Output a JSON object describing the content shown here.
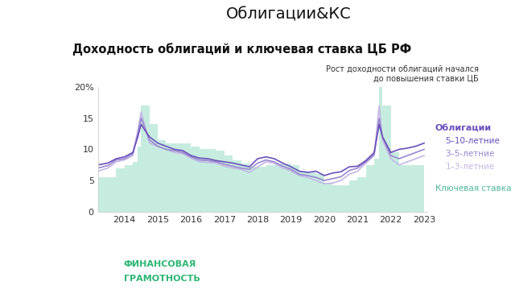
{
  "slide_title": "Облигации&КС",
  "logo": [
    "ФИНАНСОВАЯ",
    "ГРАМОТНОСТЬ"
  ],
  "chart_data": {
    "type": "line",
    "title": "Доходность облигаций и ключевая ставка ЦБ РФ",
    "annotation": "Рост доходности облигаций начался\nдо повышения ставки ЦБ",
    "legend_title": "Облигации",
    "x": [
      2013.7,
      2014.0,
      2014.25,
      2014.5,
      2014.75,
      2014.9,
      2015.0,
      2015.25,
      2015.5,
      2015.75,
      2016.0,
      2016.25,
      2016.5,
      2016.75,
      2017.0,
      2017.25,
      2017.5,
      2017.75,
      2018.0,
      2018.25,
      2018.5,
      2018.75,
      2019.0,
      2019.25,
      2019.5,
      2019.75,
      2020.0,
      2020.25,
      2020.5,
      2020.75,
      2021.0,
      2021.25,
      2021.5,
      2021.75,
      2022.0,
      2022.15,
      2022.25,
      2022.5,
      2022.75,
      2023.0,
      2023.25,
      2023.5
    ],
    "series": [
      {
        "name": "Ключевая ставка",
        "type": "area",
        "color": "#c6ecdf",
        "values": [
          5.5,
          5.5,
          7,
          7.5,
          8,
          10.5,
          17,
          14,
          11.5,
          11,
          11,
          11,
          10.5,
          10,
          10,
          9.75,
          9,
          8.25,
          7.75,
          7.25,
          7.25,
          7.5,
          7.75,
          7.75,
          7.5,
          6.5,
          6.25,
          6,
          4.5,
          4.25,
          4.25,
          5,
          5.5,
          7.5,
          8.5,
          20,
          17,
          9.5,
          7.5,
          7.5,
          7.5,
          7.5
        ]
      },
      {
        "name": "1–3-летние",
        "type": "line",
        "color": "#c3b6e6",
        "values": [
          6.5,
          7,
          8,
          8.3,
          9,
          13,
          16,
          11,
          10.5,
          10,
          9.5,
          9.3,
          8.6,
          8,
          7.9,
          7.8,
          7.3,
          7,
          6.8,
          6.3,
          7.2,
          8,
          7.8,
          7,
          6.5,
          5.8,
          5.5,
          5,
          4.5,
          4.6,
          5,
          6,
          6.5,
          7.8,
          9,
          17,
          11.5,
          8.5,
          7.5,
          8,
          8.5,
          9
        ]
      },
      {
        "name": "3–5-летние",
        "type": "line",
        "color": "#9a86d0",
        "values": [
          7,
          7.4,
          8.3,
          8.5,
          9.3,
          12.5,
          15,
          11.5,
          10.5,
          10,
          9.8,
          9.5,
          8.8,
          8.3,
          8.2,
          8,
          7.6,
          7.3,
          7,
          6.8,
          7.8,
          8.3,
          8,
          7.3,
          6.8,
          6,
          5.8,
          5.5,
          5,
          5.3,
          5.6,
          6.6,
          7,
          8,
          9.2,
          15,
          12,
          9,
          8.5,
          9,
          9.5,
          10
        ]
      },
      {
        "name": "5–10-летние",
        "type": "line",
        "color": "#6b4fbb",
        "values": [
          7.5,
          7.8,
          8.5,
          8.8,
          9.5,
          12,
          14,
          12,
          11,
          10.5,
          10,
          9.8,
          9,
          8.6,
          8.5,
          8.2,
          8,
          7.8,
          7.5,
          7.2,
          8.5,
          8.8,
          8.5,
          7.8,
          7.2,
          6.5,
          6.3,
          6.5,
          5.8,
          6.2,
          6.4,
          7.2,
          7.3,
          8.2,
          9.5,
          14,
          12,
          9.5,
          10,
          10.2,
          10.5,
          11
        ]
      }
    ],
    "xlim": [
      2013.7,
      2023.6
    ],
    "xticks": [
      {
        "value": 2014.5,
        "label": "2014"
      },
      {
        "value": 2015.5,
        "label": "2015"
      },
      {
        "value": 2016.5,
        "label": "2016"
      },
      {
        "value": 2017.5,
        "label": "2017"
      },
      {
        "value": 2018.5,
        "label": "2018"
      },
      {
        "value": 2019.5,
        "label": "2019"
      },
      {
        "value": 2020.5,
        "label": "2020"
      },
      {
        "value": 2021.5,
        "label": "2021"
      },
      {
        "value": 2022.5,
        "label": "2022"
      },
      {
        "value": 2023.5,
        "label": "2023"
      }
    ],
    "ylim": [
      0,
      20
    ],
    "yticks": [
      0,
      5,
      10,
      15,
      {
        "value": 20,
        "label": "20%"
      }
    ],
    "grid": false
  }
}
